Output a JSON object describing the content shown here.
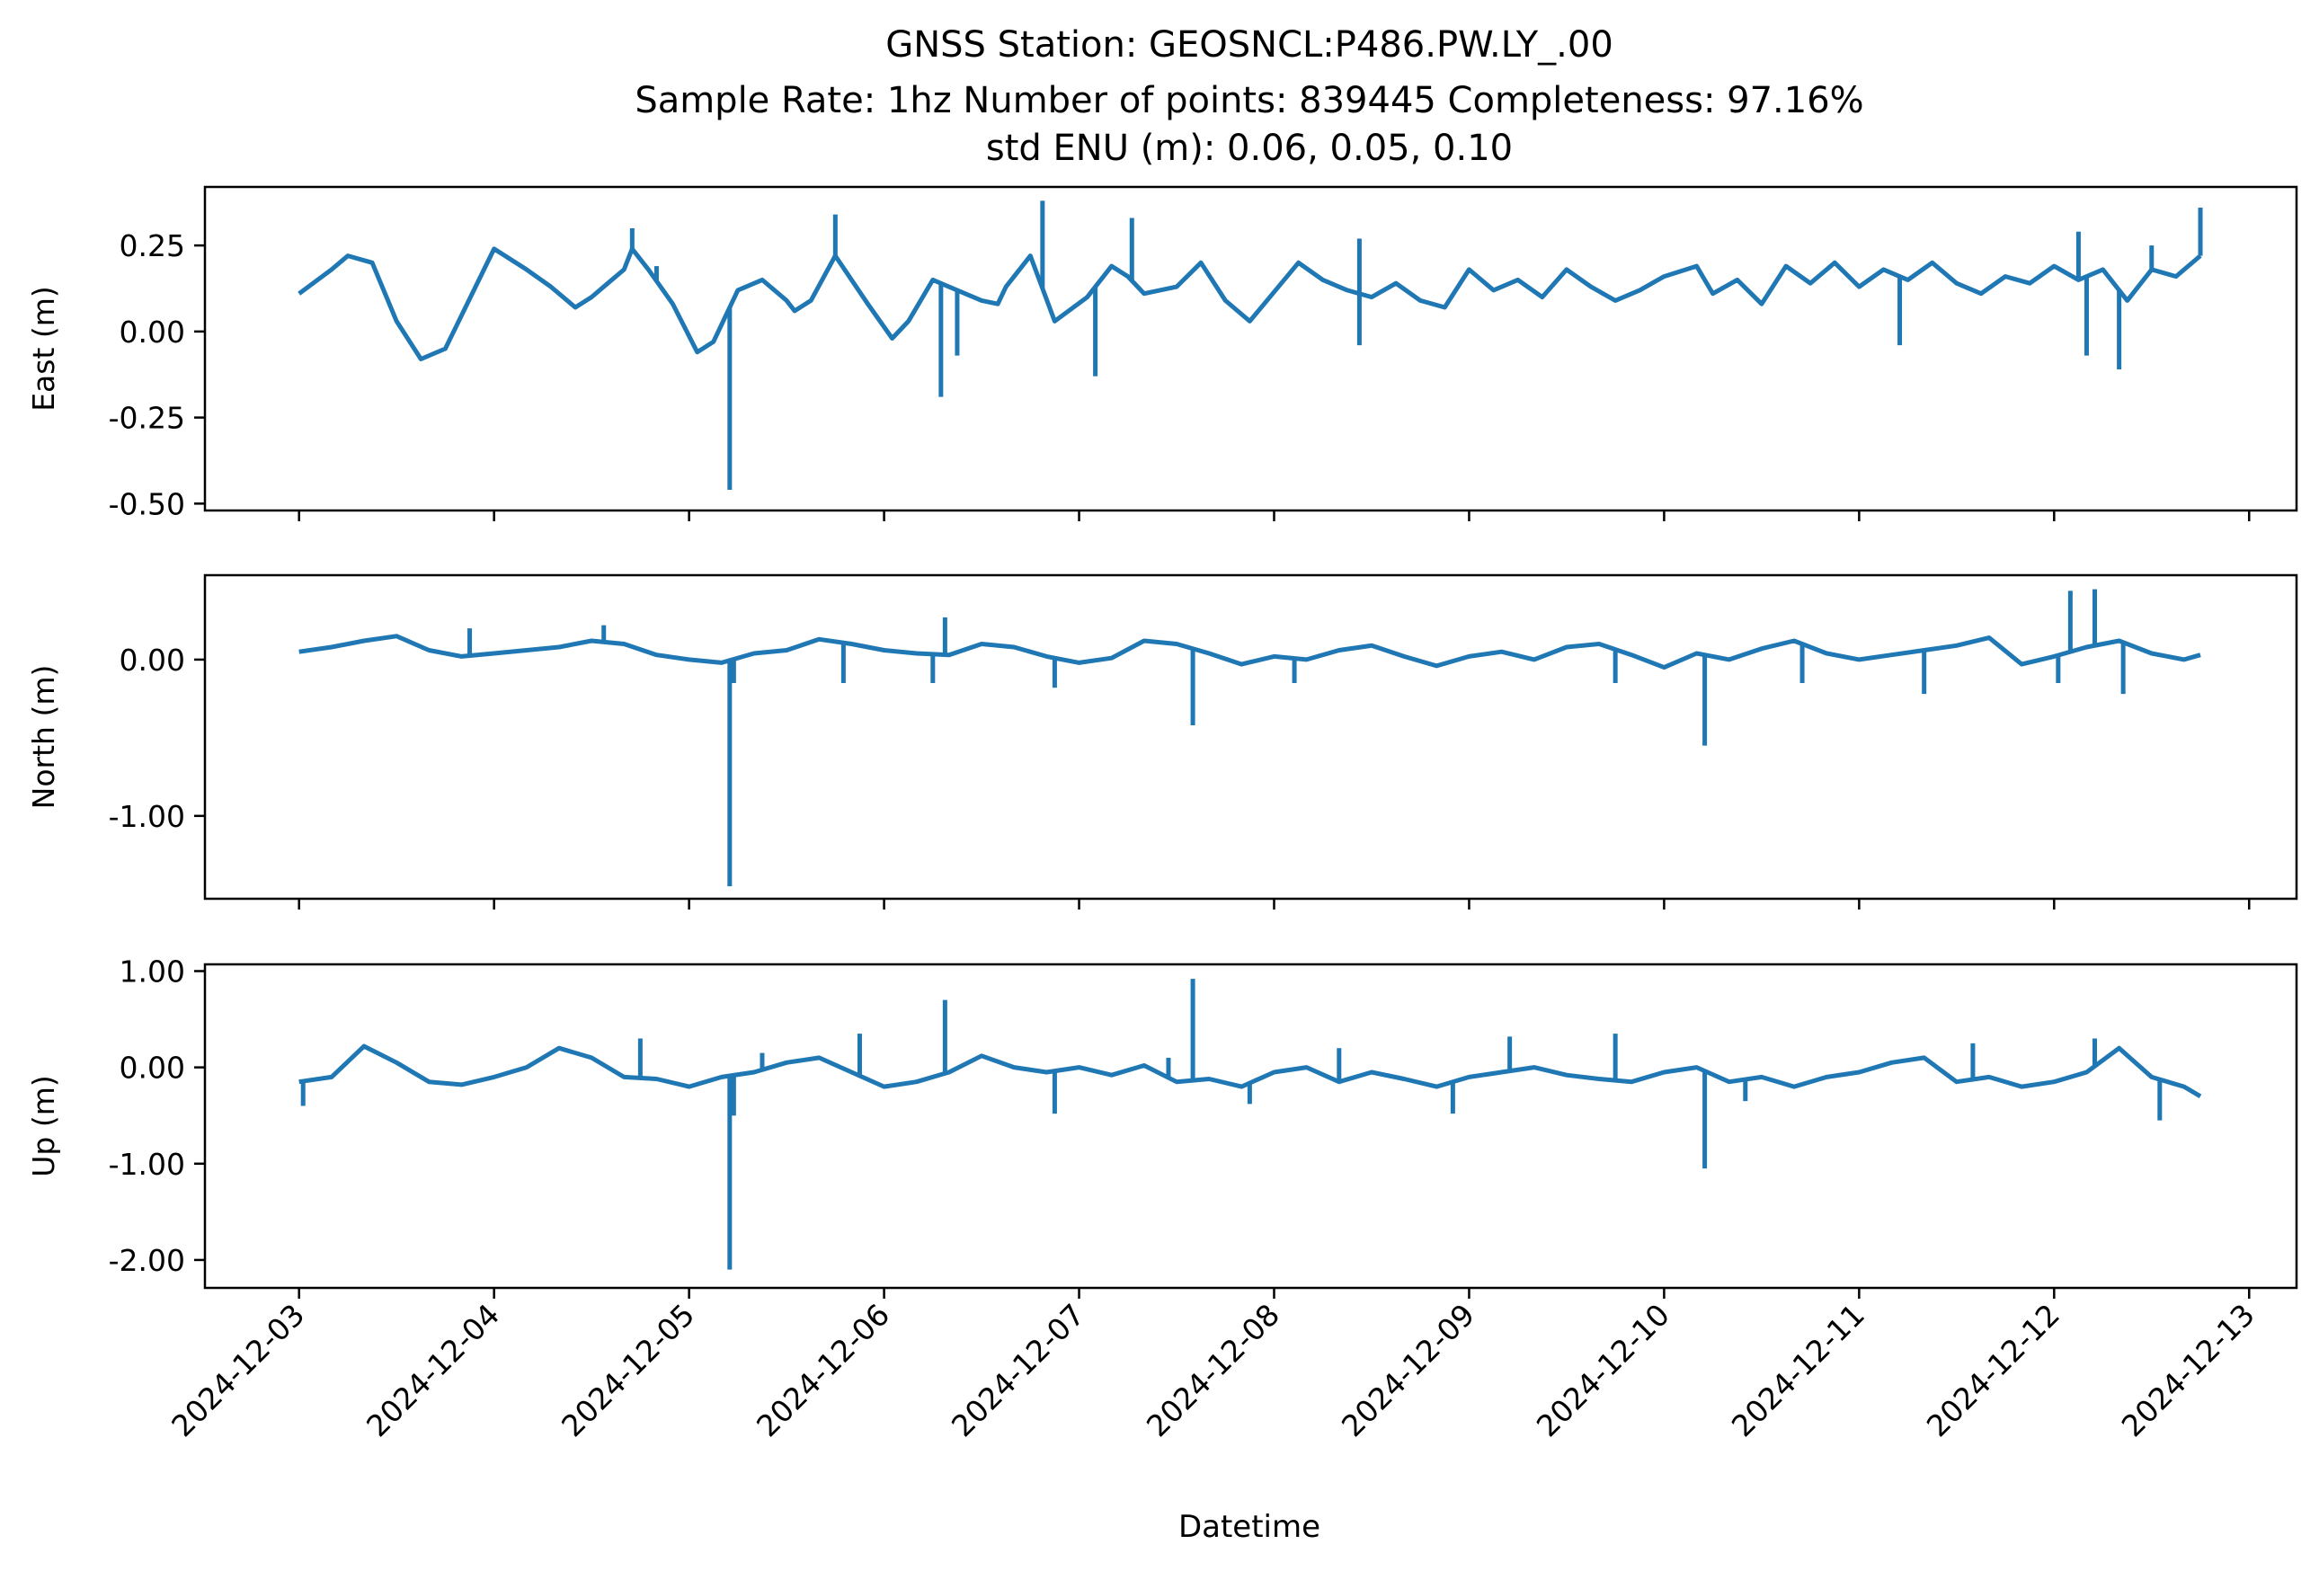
{
  "figure": {
    "title_lines": [
      "GNSS Station: GEOSNCL:P486.PW.LY_.00",
      "Sample Rate: 1hz   Number of points: 839445    Completeness:  97.16%",
      "std ENU (m):  0.06, 0.05, 0.10"
    ],
    "xlabel": "Datetime",
    "x_ticks": [
      "2024-12-03",
      "2024-12-04",
      "2024-12-05",
      "2024-12-06",
      "2024-12-07",
      "2024-12-08",
      "2024-12-09",
      "2024-12-10",
      "2024-12-11",
      "2024-12-12",
      "2024-12-13"
    ],
    "line_color": "#1f77b4"
  },
  "chart_data": [
    {
      "type": "line",
      "ylabel": "East (m)",
      "ylim": [
        -0.52,
        0.42
      ],
      "yticks": [
        0.25,
        0.0,
        -0.25,
        -0.5
      ],
      "ytick_labels": [
        "0.25",
        "0.00",
        "-0.25",
        "-0.50"
      ],
      "xlim": [
        "2024-12-02T12:25",
        "2024-12-13T05:50"
      ],
      "series": [
        {
          "color": "#1f77b4",
          "x": [
            "2024-12-03T00:00",
            "2024-12-03T04:00",
            "2024-12-03T06:00",
            "2024-12-03T09:00",
            "2024-12-03T12:00",
            "2024-12-03T15:00",
            "2024-12-03T18:00",
            "2024-12-04T00:00",
            "2024-12-04T04:00",
            "2024-12-04T07:00",
            "2024-12-04T10:00",
            "2024-12-04T12:00",
            "2024-12-04T14:00",
            "2024-12-04T16:00",
            "2024-12-04T17:00",
            "2024-12-04T19:00",
            "2024-12-04T22:00",
            "2024-12-05T01:00",
            "2024-12-05T03:00",
            "2024-12-05T06:00",
            "2024-12-05T09:00",
            "2024-12-05T12:00",
            "2024-12-05T13:00",
            "2024-12-05T15:00",
            "2024-12-05T18:00",
            "2024-12-05T22:00",
            "2024-12-06T01:00",
            "2024-12-06T03:00",
            "2024-12-06T06:00",
            "2024-12-06T09:00",
            "2024-12-06T12:00",
            "2024-12-06T14:00",
            "2024-12-06T15:00",
            "2024-12-06T18:00",
            "2024-12-06T21:00",
            "2024-12-07T01:00",
            "2024-12-07T04:00",
            "2024-12-07T06:00",
            "2024-12-07T08:00",
            "2024-12-07T12:00",
            "2024-12-07T15:00",
            "2024-12-07T18:00",
            "2024-12-07T21:00",
            "2024-12-08T03:00",
            "2024-12-08T06:00",
            "2024-12-08T09:00",
            "2024-12-08T12:00",
            "2024-12-08T15:00",
            "2024-12-08T18:00",
            "2024-12-08T21:00",
            "2024-12-09T00:00",
            "2024-12-09T03:00",
            "2024-12-09T06:00",
            "2024-12-09T09:00",
            "2024-12-09T12:00",
            "2024-12-09T15:00",
            "2024-12-09T18:00",
            "2024-12-09T21:00",
            "2024-12-10T00:00",
            "2024-12-10T04:00",
            "2024-12-10T06:00",
            "2024-12-10T09:00",
            "2024-12-10T12:00",
            "2024-12-10T15:00",
            "2024-12-10T18:00",
            "2024-12-10T21:00",
            "2024-12-11T00:00",
            "2024-12-11T03:00",
            "2024-12-11T06:00",
            "2024-12-11T09:00",
            "2024-12-11T12:00",
            "2024-12-11T15:00",
            "2024-12-11T18:00",
            "2024-12-11T21:00",
            "2024-12-12T00:00",
            "2024-12-12T03:00",
            "2024-12-12T06:00",
            "2024-12-12T09:00",
            "2024-12-12T12:00",
            "2024-12-12T15:00",
            "2024-12-12T18:00"
          ],
          "y": [
            0.11,
            0.18,
            0.22,
            0.2,
            0.03,
            -0.08,
            -0.05,
            0.24,
            0.18,
            0.13,
            0.07,
            0.1,
            0.14,
            0.18,
            0.24,
            0.18,
            0.08,
            -0.06,
            -0.03,
            0.12,
            0.15,
            0.09,
            0.06,
            0.09,
            0.22,
            0.08,
            -0.02,
            0.03,
            0.15,
            0.12,
            0.09,
            0.08,
            0.13,
            0.22,
            0.03,
            0.1,
            0.19,
            0.16,
            0.11,
            0.13,
            0.2,
            0.09,
            0.03,
            0.2,
            0.15,
            0.12,
            0.1,
            0.14,
            0.09,
            0.07,
            0.18,
            0.12,
            0.15,
            0.1,
            0.18,
            0.13,
            0.09,
            0.12,
            0.16,
            0.19,
            0.11,
            0.15,
            0.08,
            0.19,
            0.14,
            0.2,
            0.13,
            0.18,
            0.15,
            0.2,
            0.14,
            0.11,
            0.16,
            0.14,
            0.19,
            0.15,
            0.18,
            0.09,
            0.18,
            0.16,
            0.22
          ],
          "spikes": [
            {
              "x": "2024-12-04T17:00",
              "y": 0.3
            },
            {
              "x": "2024-12-04T20:00",
              "y": 0.19
            },
            {
              "x": "2024-12-05T05:00",
              "y": -0.46
            },
            {
              "x": "2024-12-05T09:00",
              "y": 0.15
            },
            {
              "x": "2024-12-05T18:00",
              "y": 0.34
            },
            {
              "x": "2024-12-06T07:00",
              "y": -0.19
            },
            {
              "x": "2024-12-06T09:00",
              "y": -0.07
            },
            {
              "x": "2024-12-06T19:30",
              "y": 0.38
            },
            {
              "x": "2024-12-07T02:00",
              "y": -0.13
            },
            {
              "x": "2024-12-07T06:30",
              "y": 0.33
            },
            {
              "x": "2024-12-08T10:30",
              "y": 0.27
            },
            {
              "x": "2024-12-08T10:30",
              "y": -0.04
            },
            {
              "x": "2024-12-11T05:00",
              "y": -0.04
            },
            {
              "x": "2024-12-12T03:00",
              "y": 0.29
            },
            {
              "x": "2024-12-12T04:00",
              "y": -0.07
            },
            {
              "x": "2024-12-12T08:00",
              "y": -0.11
            },
            {
              "x": "2024-12-12T12:00",
              "y": 0.25
            },
            {
              "x": "2024-12-12T18:00",
              "y": 0.36
            }
          ]
        }
      ]
    },
    {
      "type": "line",
      "ylabel": "North (m)",
      "ylim": [
        -1.53,
        0.54
      ],
      "yticks": [
        0.0,
        -1.0
      ],
      "ytick_labels": [
        "0.00",
        "-1.00"
      ],
      "xlim": [
        "2024-12-02T12:25",
        "2024-12-13T05:50"
      ],
      "series": [
        {
          "color": "#1f77b4",
          "x": [
            "2024-12-03T00:00",
            "2024-12-03T04:00",
            "2024-12-03T08:00",
            "2024-12-03T12:00",
            "2024-12-03T16:00",
            "2024-12-03T20:00",
            "2024-12-04T00:00",
            "2024-12-04T04:00",
            "2024-12-04T08:00",
            "2024-12-04T12:00",
            "2024-12-04T16:00",
            "2024-12-04T20:00",
            "2024-12-05T00:00",
            "2024-12-05T04:00",
            "2024-12-05T08:00",
            "2024-12-05T12:00",
            "2024-12-05T16:00",
            "2024-12-05T20:00",
            "2024-12-06T00:00",
            "2024-12-06T04:00",
            "2024-12-06T08:00",
            "2024-12-06T12:00",
            "2024-12-06T16:00",
            "2024-12-06T20:00",
            "2024-12-07T00:00",
            "2024-12-07T04:00",
            "2024-12-07T08:00",
            "2024-12-07T12:00",
            "2024-12-07T16:00",
            "2024-12-07T20:00",
            "2024-12-08T00:00",
            "2024-12-08T04:00",
            "2024-12-08T08:00",
            "2024-12-08T12:00",
            "2024-12-08T16:00",
            "2024-12-08T20:00",
            "2024-12-09T00:00",
            "2024-12-09T04:00",
            "2024-12-09T08:00",
            "2024-12-09T12:00",
            "2024-12-09T16:00",
            "2024-12-09T20:00",
            "2024-12-10T00:00",
            "2024-12-10T04:00",
            "2024-12-10T08:00",
            "2024-12-10T12:00",
            "2024-12-10T16:00",
            "2024-12-10T20:00",
            "2024-12-11T00:00",
            "2024-12-11T04:00",
            "2024-12-11T08:00",
            "2024-12-11T12:00",
            "2024-12-11T16:00",
            "2024-12-11T20:00",
            "2024-12-12T00:00",
            "2024-12-12T04:00",
            "2024-12-12T08:00",
            "2024-12-12T12:00",
            "2024-12-12T16:00",
            "2024-12-12T18:00"
          ],
          "y": [
            0.05,
            0.08,
            0.12,
            0.15,
            0.06,
            0.02,
            0.04,
            0.06,
            0.08,
            0.12,
            0.1,
            0.03,
            0.0,
            -0.02,
            0.04,
            0.06,
            0.13,
            0.1,
            0.06,
            0.04,
            0.03,
            0.1,
            0.08,
            0.02,
            -0.02,
            0.01,
            0.12,
            0.1,
            0.04,
            -0.03,
            0.02,
            0.0,
            0.06,
            0.09,
            0.02,
            -0.04,
            0.02,
            0.05,
            0.0,
            0.08,
            0.1,
            0.03,
            -0.05,
            0.04,
            0.0,
            0.07,
            0.12,
            0.04,
            0.0,
            0.03,
            0.06,
            0.09,
            0.14,
            -0.03,
            0.02,
            0.08,
            0.12,
            0.04,
            0.0,
            0.03
          ],
          "spikes": [
            {
              "x": "2024-12-03T21:00",
              "y": 0.2
            },
            {
              "x": "2024-12-04T13:30",
              "y": 0.22
            },
            {
              "x": "2024-12-05T05:00",
              "y": -1.45
            },
            {
              "x": "2024-12-05T05:30",
              "y": -0.15
            },
            {
              "x": "2024-12-05T19:00",
              "y": -0.15
            },
            {
              "x": "2024-12-06T06:00",
              "y": -0.15
            },
            {
              "x": "2024-12-06T07:30",
              "y": 0.27
            },
            {
              "x": "2024-12-06T21:00",
              "y": -0.18
            },
            {
              "x": "2024-12-07T14:00",
              "y": -0.42
            },
            {
              "x": "2024-12-08T02:30",
              "y": -0.15
            },
            {
              "x": "2024-12-09T18:00",
              "y": -0.15
            },
            {
              "x": "2024-12-10T05:00",
              "y": -0.55
            },
            {
              "x": "2024-12-10T17:00",
              "y": -0.15
            },
            {
              "x": "2024-12-11T08:00",
              "y": -0.22
            },
            {
              "x": "2024-12-12T00:30",
              "y": -0.15
            },
            {
              "x": "2024-12-12T02:00",
              "y": 0.44
            },
            {
              "x": "2024-12-12T05:00",
              "y": 0.45
            },
            {
              "x": "2024-12-12T08:30",
              "y": -0.22
            }
          ]
        }
      ]
    },
    {
      "type": "line",
      "ylabel": "Up (m)",
      "ylim": [
        -2.29,
        1.07
      ],
      "yticks": [
        1.0,
        0.0,
        -1.0,
        -2.0
      ],
      "ytick_labels": [
        "1.00",
        "0.00",
        "-1.00",
        "-2.00"
      ],
      "xlim": [
        "2024-12-02T12:25",
        "2024-12-13T05:50"
      ],
      "series": [
        {
          "color": "#1f77b4",
          "x": [
            "2024-12-03T00:00",
            "2024-12-03T04:00",
            "2024-12-03T08:00",
            "2024-12-03T12:00",
            "2024-12-03T16:00",
            "2024-12-03T20:00",
            "2024-12-04T00:00",
            "2024-12-04T04:00",
            "2024-12-04T08:00",
            "2024-12-04T12:00",
            "2024-12-04T16:00",
            "2024-12-04T20:00",
            "2024-12-05T00:00",
            "2024-12-05T04:00",
            "2024-12-05T08:00",
            "2024-12-05T12:00",
            "2024-12-05T16:00",
            "2024-12-05T20:00",
            "2024-12-06T00:00",
            "2024-12-06T04:00",
            "2024-12-06T08:00",
            "2024-12-06T12:00",
            "2024-12-06T16:00",
            "2024-12-06T20:00",
            "2024-12-07T00:00",
            "2024-12-07T04:00",
            "2024-12-07T08:00",
            "2024-12-07T12:00",
            "2024-12-07T16:00",
            "2024-12-07T20:00",
            "2024-12-08T00:00",
            "2024-12-08T04:00",
            "2024-12-08T08:00",
            "2024-12-08T12:00",
            "2024-12-08T16:00",
            "2024-12-08T20:00",
            "2024-12-09T00:00",
            "2024-12-09T04:00",
            "2024-12-09T08:00",
            "2024-12-09T12:00",
            "2024-12-09T16:00",
            "2024-12-09T20:00",
            "2024-12-10T00:00",
            "2024-12-10T04:00",
            "2024-12-10T08:00",
            "2024-12-10T12:00",
            "2024-12-10T16:00",
            "2024-12-10T20:00",
            "2024-12-11T00:00",
            "2024-12-11T04:00",
            "2024-12-11T08:00",
            "2024-12-11T12:00",
            "2024-12-11T16:00",
            "2024-12-11T20:00",
            "2024-12-12T00:00",
            "2024-12-12T04:00",
            "2024-12-12T08:00",
            "2024-12-12T12:00",
            "2024-12-12T16:00",
            "2024-12-12T18:00"
          ],
          "y": [
            -0.15,
            -0.1,
            0.22,
            0.05,
            -0.15,
            -0.18,
            -0.1,
            0.0,
            0.2,
            0.1,
            -0.1,
            -0.12,
            -0.2,
            -0.1,
            -0.05,
            0.05,
            0.1,
            -0.05,
            -0.2,
            -0.15,
            -0.05,
            0.12,
            0.0,
            -0.05,
            0.0,
            -0.08,
            0.02,
            -0.15,
            -0.12,
            -0.2,
            -0.05,
            0.0,
            -0.15,
            -0.05,
            -0.12,
            -0.2,
            -0.1,
            -0.05,
            0.0,
            -0.08,
            -0.12,
            -0.15,
            -0.05,
            0.0,
            -0.15,
            -0.1,
            -0.2,
            -0.1,
            -0.05,
            0.05,
            0.1,
            -0.15,
            -0.1,
            -0.2,
            -0.15,
            -0.05,
            0.2,
            -0.1,
            -0.2,
            -0.3
          ],
          "spikes": [
            {
              "x": "2024-12-03T00:30",
              "y": -0.4
            },
            {
              "x": "2024-12-04T18:00",
              "y": 0.3
            },
            {
              "x": "2024-12-05T05:00",
              "y": -2.1
            },
            {
              "x": "2024-12-05T05:30",
              "y": -0.5
            },
            {
              "x": "2024-12-05T09:00",
              "y": 0.15
            },
            {
              "x": "2024-12-05T21:00",
              "y": 0.35
            },
            {
              "x": "2024-12-06T07:30",
              "y": 0.7
            },
            {
              "x": "2024-12-06T21:00",
              "y": -0.48
            },
            {
              "x": "2024-12-07T14:00",
              "y": 0.92
            },
            {
              "x": "2024-12-07T11:00",
              "y": 0.1
            },
            {
              "x": "2024-12-07T21:00",
              "y": -0.38
            },
            {
              "x": "2024-12-08T08:00",
              "y": 0.2
            },
            {
              "x": "2024-12-08T22:00",
              "y": -0.48
            },
            {
              "x": "2024-12-09T05:00",
              "y": 0.32
            },
            {
              "x": "2024-12-09T18:00",
              "y": 0.35
            },
            {
              "x": "2024-12-10T05:00",
              "y": -1.05
            },
            {
              "x": "2024-12-10T10:00",
              "y": -0.35
            },
            {
              "x": "2024-12-11T14:00",
              "y": 0.25
            },
            {
              "x": "2024-12-12T05:00",
              "y": 0.3
            },
            {
              "x": "2024-12-12T13:00",
              "y": -0.55
            }
          ]
        }
      ]
    }
  ]
}
